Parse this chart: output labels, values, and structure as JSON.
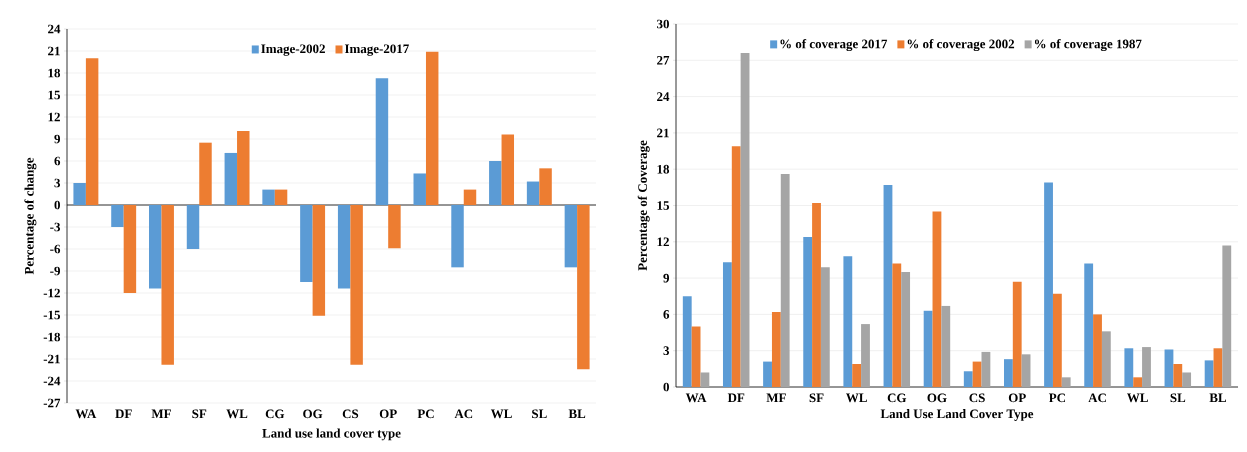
{
  "chart_data": [
    {
      "type": "bar",
      "xlabel": "Land use land cover type",
      "ylabel": "Percentage of change",
      "categories": [
        "WA",
        "DF",
        "MF",
        "SF",
        "WL",
        "CG",
        "OG",
        "CS",
        "OP",
        "PC",
        "AC",
        "WL",
        "SL",
        "BL"
      ],
      "series": [
        {
          "name": "Image-2002",
          "color": "#5b9bd5",
          "values": [
            3.0,
            -3.0,
            -11.4,
            -6.0,
            7.1,
            2.1,
            -10.5,
            -11.4,
            17.3,
            4.3,
            -8.5,
            6.0,
            3.2,
            -8.5
          ]
        },
        {
          "name": "Image-2017",
          "color": "#ed7d31",
          "values": [
            20.0,
            -12.0,
            -21.8,
            8.5,
            10.1,
            2.1,
            -15.1,
            -21.8,
            -5.9,
            20.9,
            2.1,
            9.6,
            5.0,
            -22.4
          ]
        }
      ],
      "ylim": [
        -27,
        24
      ],
      "yticks": [
        -27,
        -24,
        -21,
        -18,
        -15,
        -12,
        -9,
        -6,
        -3,
        0,
        3,
        6,
        9,
        12,
        15,
        18,
        21,
        24
      ],
      "grid": "y",
      "legend": "top"
    },
    {
      "type": "bar",
      "xlabel": "Land Use Land Cover Type",
      "ylabel": "Percentage of Coverage",
      "categories": [
        "WA",
        "DF",
        "MF",
        "SF",
        "WL",
        "CG",
        "OG",
        "CS",
        "OP",
        "PC",
        "AC",
        "WL",
        "SL",
        "BL"
      ],
      "series": [
        {
          "name": "% of coverage 2017",
          "color": "#5b9bd5",
          "values": [
            7.5,
            10.3,
            2.1,
            12.4,
            10.8,
            16.7,
            6.3,
            1.3,
            2.3,
            16.9,
            10.2,
            3.2,
            3.1,
            2.2
          ]
        },
        {
          "name": "% of coverage 2002",
          "color": "#ed7d31",
          "values": [
            5.0,
            19.9,
            6.2,
            15.2,
            1.9,
            10.2,
            14.5,
            2.1,
            8.7,
            7.7,
            6.0,
            0.8,
            1.9,
            3.2
          ]
        },
        {
          "name": "% of coverage 1987",
          "color": "#a5a5a5",
          "values": [
            1.2,
            27.6,
            17.6,
            9.9,
            5.2,
            9.5,
            6.7,
            2.9,
            2.7,
            0.8,
            4.6,
            3.3,
            1.2,
            11.7
          ]
        }
      ],
      "ylim": [
        0,
        30
      ],
      "yticks": [
        0,
        3,
        6,
        9,
        12,
        15,
        18,
        21,
        24,
        27,
        30
      ],
      "grid": "y",
      "legend": "top"
    }
  ]
}
